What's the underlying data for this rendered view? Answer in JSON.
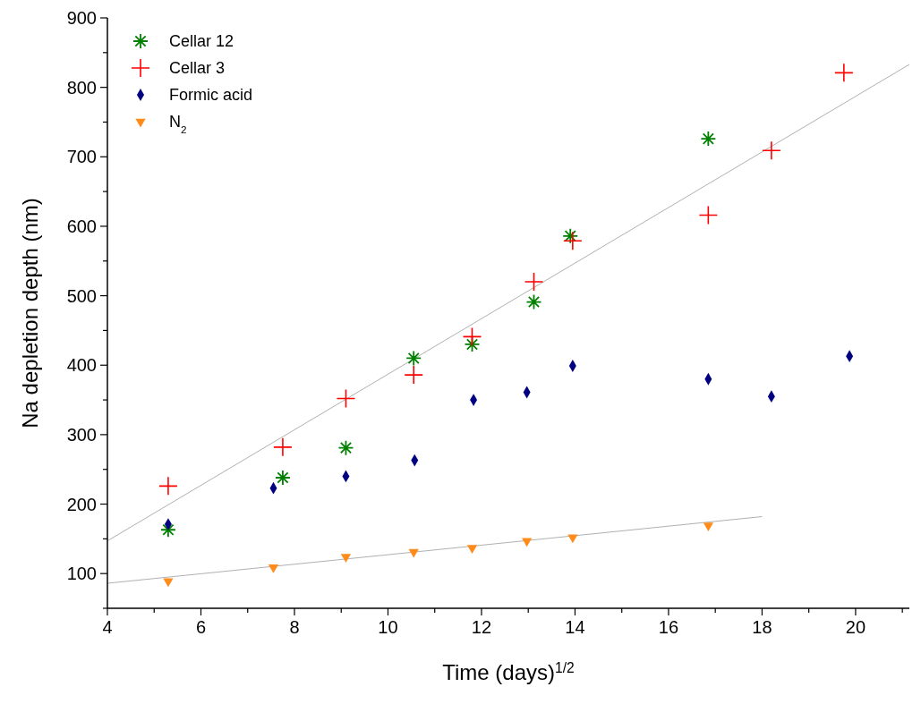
{
  "chart_data": {
    "type": "scatter",
    "xlabel": "Time (days)$^{1/2}$",
    "ylabel": "Na depletion depth (nm)",
    "xlim": [
      4,
      21.15
    ],
    "ylim": [
      50,
      900
    ],
    "xticks": [
      4,
      {
        "value": 5,
        "label": null
      },
      6,
      {
        "value": 7,
        "label": null
      },
      8,
      {
        "value": 9,
        "label": null
      },
      10,
      {
        "value": 11,
        "label": null
      },
      12,
      {
        "value": 13,
        "label": null
      },
      14,
      {
        "value": 15,
        "label": null
      },
      16,
      {
        "value": 17,
        "label": null
      },
      18,
      {
        "value": 19,
        "label": null
      },
      20,
      {
        "value": 21,
        "label": null
      }
    ],
    "yticks": [
      {
        "value": 50,
        "label": null
      },
      100,
      {
        "value": 150,
        "label": null
      },
      200,
      {
        "value": 250,
        "label": null
      },
      300,
      {
        "value": 350,
        "label": null
      },
      400,
      {
        "value": 450,
        "label": null
      },
      500,
      {
        "value": 550,
        "label": null
      },
      600,
      {
        "value": 650,
        "label": null
      },
      700,
      {
        "value": 750,
        "label": null
      },
      800,
      {
        "value": 850,
        "label": null
      },
      900
    ],
    "grid": false,
    "legend": "top left",
    "series": [
      {
        "name": "Cellar 12",
        "color": "#008000",
        "marker": "star",
        "x": [
          5.3,
          7.75,
          9.1,
          10.55,
          11.8,
          13.12,
          13.9,
          16.85
        ],
        "values": [
          163,
          238,
          281,
          410,
          430,
          491,
          586,
          726
        ]
      },
      {
        "name": "Cellar 3",
        "color": "#ff0000",
        "marker": "cross",
        "x": [
          5.3,
          7.75,
          9.1,
          10.55,
          11.8,
          13.12,
          13.95,
          16.85,
          18.2,
          19.75
        ],
        "values": [
          226,
          282,
          352,
          386,
          441,
          520,
          579,
          616,
          709,
          821
        ]
      },
      {
        "name": "Formic acid",
        "color": "#000080",
        "marker": "diamond",
        "x": [
          5.3,
          7.55,
          9.1,
          10.57,
          11.83,
          12.97,
          13.95,
          16.85,
          18.2,
          19.87
        ],
        "values": [
          171,
          223,
          240,
          263,
          350,
          361,
          399,
          380,
          355,
          413
        ]
      },
      {
        "name": "N$_{2}$",
        "color": "#ff8c1a",
        "marker": "triangle",
        "x": [
          5.3,
          7.55,
          9.1,
          10.55,
          11.8,
          12.97,
          13.95,
          16.85
        ],
        "values": [
          89,
          109,
          124,
          131,
          137,
          147,
          152,
          169
        ]
      },
      {
        "type": "line",
        "color": "#b0b0b0",
        "marker": "none",
        "x": [
          4,
          21.15
        ],
        "values": [
          147,
          833
        ]
      },
      {
        "type": "line",
        "color": "#b0b0b0",
        "marker": "none",
        "x": [
          4,
          18
        ],
        "values": [
          86,
          182
        ]
      }
    ]
  }
}
